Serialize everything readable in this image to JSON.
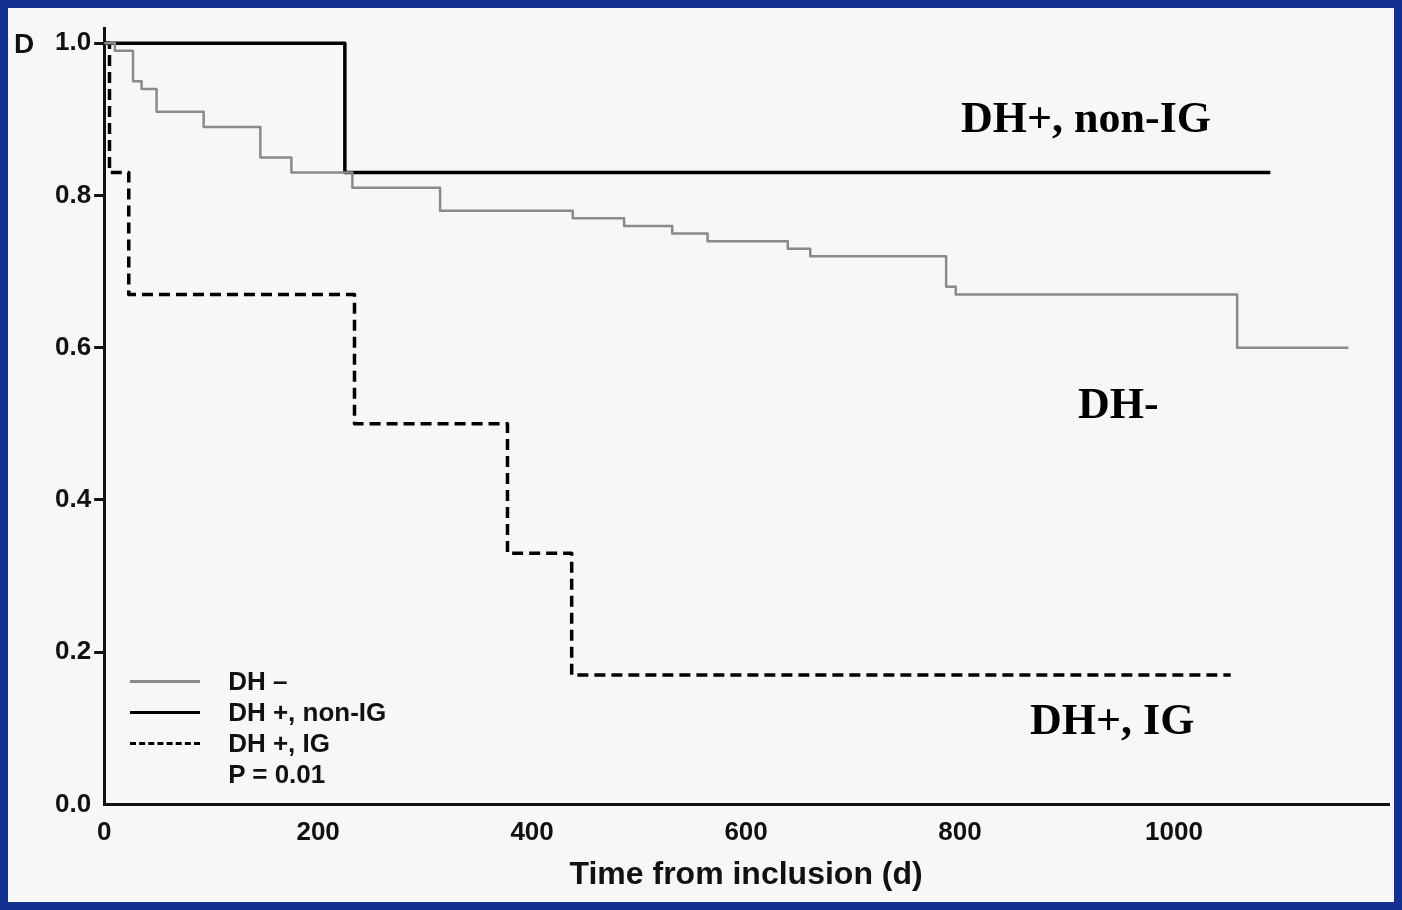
{
  "chart_data": {
    "type": "step",
    "xlabel": "Time from inclusion (d)",
    "xlim": [
      0,
      1200
    ],
    "xticks": [
      0,
      200,
      400,
      600,
      800,
      1000
    ],
    "ylim": [
      0,
      1.02
    ],
    "yticks": [
      {
        "value": 0,
        "label": "0.0"
      },
      {
        "value": 0.2,
        "label": "0.2"
      },
      {
        "value": 0.4,
        "label": "0.4"
      },
      {
        "value": 0.6,
        "label": "0.6"
      },
      {
        "value": 0.8,
        "label": "0.8"
      },
      {
        "value": 1,
        "label": "1.0"
      }
    ],
    "grid": false,
    "legend": "bottom left",
    "marker": "none",
    "series": [
      {
        "name": "DH –",
        "color": "#8a8a8a",
        "line_style": "solid",
        "x": [
          0,
          10,
          10,
          27,
          27,
          35,
          35,
          49,
          49,
          93,
          93,
          146,
          146,
          175,
          175,
          232,
          232,
          314,
          314,
          438,
          438,
          486,
          486,
          531,
          531,
          564,
          564,
          639,
          639,
          660,
          660,
          787,
          787,
          796,
          796,
          1059,
          1059,
          1163
        ],
        "values": [
          1,
          1,
          0.99,
          0.99,
          0.95,
          0.95,
          0.94,
          0.94,
          0.91,
          0.91,
          0.89,
          0.89,
          0.85,
          0.85,
          0.83,
          0.83,
          0.81,
          0.81,
          0.78,
          0.78,
          0.77,
          0.77,
          0.76,
          0.76,
          0.75,
          0.75,
          0.74,
          0.74,
          0.73,
          0.73,
          0.72,
          0.72,
          0.68,
          0.68,
          0.67,
          0.67,
          0.6,
          0.6
        ]
      },
      {
        "name": "DH +, non-IG",
        "color": "#000000",
        "line_style": "solid",
        "x": [
          0,
          225,
          225,
          1090
        ],
        "values": [
          1,
          1,
          0.83,
          0.83
        ]
      },
      {
        "name": "DH +, IG",
        "color": "#000000",
        "line_style": "dashed",
        "x": [
          0,
          5,
          5,
          23,
          23,
          234,
          234,
          377,
          377,
          437,
          437,
          1053
        ],
        "values": [
          1,
          1,
          0.83,
          0.83,
          0.67,
          0.67,
          0.5,
          0.5,
          0.33,
          0.33,
          0.17,
          0.17
        ]
      }
    ],
    "annotations": [
      "D",
      "P = 0.01",
      "DH+, non-IG",
      "DH-",
      "DH+, IG"
    ]
  }
}
